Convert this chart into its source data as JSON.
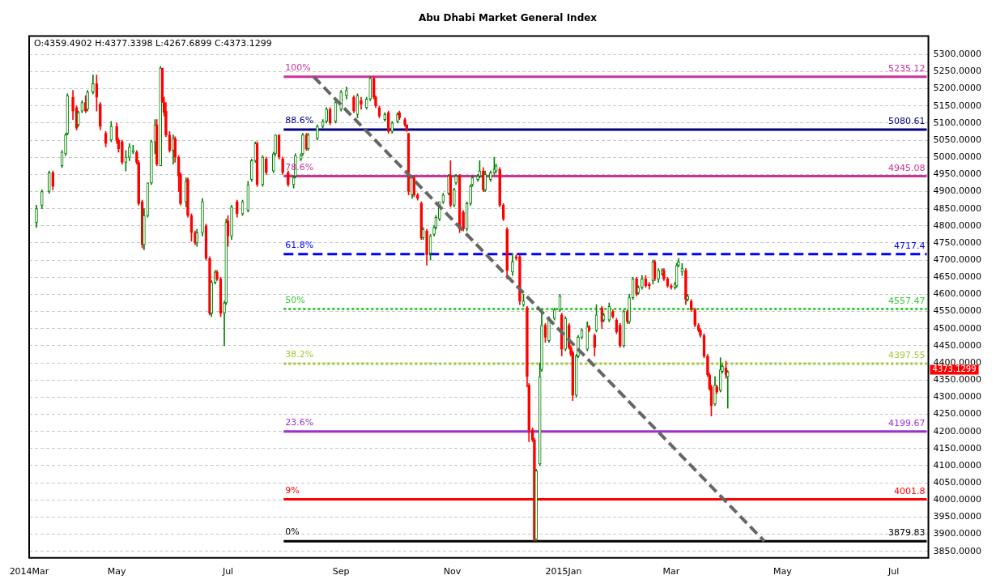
{
  "chart_data": {
    "type": "candlestick",
    "title": "Abu Dhabi Market General Index",
    "grid": "y",
    "xlim": [
      "2014-03-14",
      "2015-07-20"
    ],
    "xticks": [
      {
        "value": "2014-03-14",
        "label": "2014Mar"
      },
      {
        "value": "2014-05-01",
        "label": "May"
      },
      {
        "value": "2014-07-01",
        "label": "Jul"
      },
      {
        "value": "2014-09-01",
        "label": "Sep"
      },
      {
        "value": "2014-11-01",
        "label": "Nov"
      },
      {
        "value": "2015-01-01",
        "label": "2015Jan"
      },
      {
        "value": "2015-03-01",
        "label": "Mar"
      },
      {
        "value": "2015-05-01",
        "label": "May"
      },
      {
        "value": "2015-07-01",
        "label": "Jul"
      }
    ],
    "ylim": [
      3831,
      5354
    ],
    "yticks": [
      {
        "value": 3850,
        "label": "3850.0000"
      },
      {
        "value": 3900,
        "label": "3900.0000"
      },
      {
        "value": 3950,
        "label": "3950.0000"
      },
      {
        "value": 4000,
        "label": "4000.0000"
      },
      {
        "value": 4050,
        "label": "4050.0000"
      },
      {
        "value": 4100,
        "label": "4100.0000"
      },
      {
        "value": 4150,
        "label": "4150.0000"
      },
      {
        "value": 4200,
        "label": "4200.0000"
      },
      {
        "value": 4250,
        "label": "4250.0000"
      },
      {
        "value": 4300,
        "label": "4300.0000"
      },
      {
        "value": 4350,
        "label": "4350.0000"
      },
      {
        "value": 4400,
        "label": "4400.0000"
      },
      {
        "value": 4450,
        "label": "4450.0000"
      },
      {
        "value": 4500,
        "label": "4500.0000"
      },
      {
        "value": 4550,
        "label": "4550.0000"
      },
      {
        "value": 4600,
        "label": "4600.0000"
      },
      {
        "value": 4650,
        "label": "4650.0000"
      },
      {
        "value": 4700,
        "label": "4700.0000"
      },
      {
        "value": 4750,
        "label": "4750.0000"
      },
      {
        "value": 4800,
        "label": "4800.0000"
      },
      {
        "value": 4850,
        "label": "4850.0000"
      },
      {
        "value": 4900,
        "label": "4900.0000"
      },
      {
        "value": 4950,
        "label": "4950.0000"
      },
      {
        "value": 5000,
        "label": "5000.0000"
      },
      {
        "value": 5050,
        "label": "5050.0000"
      },
      {
        "value": 5100,
        "label": "5100.0000"
      },
      {
        "value": 5150,
        "label": "5150.0000"
      },
      {
        "value": 5200,
        "label": "5200.0000"
      },
      {
        "value": 5250,
        "label": "5250.0000"
      },
      {
        "value": 5300,
        "label": "5300.0000"
      }
    ],
    "ref_lines": [
      {
        "axis": "y",
        "value": 5235.12,
        "label": "5235.12",
        "color": "#cc3399",
        "line_style": "solid"
      },
      {
        "axis": "y",
        "value": 5080.61,
        "label": "5080.61",
        "color": "#000080",
        "line_style": "solid"
      },
      {
        "axis": "y",
        "value": 4945.08,
        "label": "4945.08",
        "color": "#cc3399",
        "line_style": "solid"
      },
      {
        "axis": "y",
        "value": 4717.4,
        "label": "4717.4",
        "color": "#0000ff",
        "line_style": "dashed"
      },
      {
        "axis": "y",
        "value": 4557.47,
        "label": "4557.47",
        "color": "#33cc33",
        "line_style": "dotted"
      },
      {
        "axis": "y",
        "value": 4397.55,
        "label": "4397.55",
        "color": "#99cc33",
        "line_style": "dotted"
      },
      {
        "axis": "y",
        "value": 4199.67,
        "label": "4199.67",
        "color": "#9933cc",
        "line_style": "solid"
      },
      {
        "axis": "y",
        "value": 4001.8,
        "label": "4001.8",
        "color": "#ff0000",
        "line_style": "solid"
      },
      {
        "axis": "y",
        "value": 3879.83,
        "label": "3879.83",
        "color": "#000000",
        "line_style": "solid"
      }
    ],
    "annotations": [
      "O:4359.4902 H:4377.3398 L:4267.6899 C:4373.1299",
      "4373.1299",
      {
        "text": "100%",
        "y": 5235.12
      },
      {
        "text": "88.6%",
        "y": 5080.61
      },
      {
        "text": "78.6%",
        "y": 4945.08
      },
      {
        "text": "61.8%",
        "y": 4717.4
      },
      {
        "text": "50%",
        "y": 4557.47
      },
      {
        "text": "38.2%",
        "y": 4397.55
      },
      {
        "text": "23.6%",
        "y": 4199.67
      },
      {
        "text": "9%",
        "y": 4001.8
      },
      {
        "text": "0%",
        "y": 3879.83
      }
    ],
    "series": [
      {
        "x": [
          "2014-03-18",
          "2014-03-21",
          "2014-03-25",
          "2014-03-27",
          "2014-04-01",
          "2014-04-03",
          "2014-04-04",
          "2014-04-07",
          "2014-04-09",
          "2014-04-10",
          "2014-04-12",
          "2014-04-14",
          "2014-04-15",
          "2014-04-18",
          "2014-04-20",
          "2014-04-22",
          "2014-04-25",
          "2014-04-28",
          "2014-05-01",
          "2014-05-02",
          "2014-05-04",
          "2014-05-06",
          "2014-05-08",
          "2014-05-10",
          "2014-05-12",
          "2014-05-13",
          "2014-05-15",
          "2014-05-16",
          "2014-05-18",
          "2014-05-20",
          "2014-05-22",
          "2014-05-23",
          "2014-05-25",
          "2014-05-26",
          "2014-05-27",
          "2014-05-28",
          "2014-05-30",
          "2014-06-01",
          "2014-06-02",
          "2014-06-04",
          "2014-06-05",
          "2014-06-08",
          "2014-06-09",
          "2014-06-11",
          "2014-06-13",
          "2014-06-14",
          "2014-06-17",
          "2014-06-19",
          "2014-06-21",
          "2014-06-22",
          "2014-06-24",
          "2014-06-25",
          "2014-06-27",
          "2014-06-29",
          "2014-06-30",
          "2014-07-01",
          "2014-07-03",
          "2014-07-06",
          "2014-07-09",
          "2014-07-12",
          "2014-07-14",
          "2014-07-16",
          "2014-07-17",
          "2014-07-20",
          "2014-07-22",
          "2014-07-26",
          "2014-07-27",
          "2014-07-29",
          "2014-07-31",
          "2014-08-03",
          "2014-08-06",
          "2014-08-07",
          "2014-08-10",
          "2014-08-11",
          "2014-08-13",
          "2014-08-14",
          "2014-08-19",
          "2014-08-22",
          "2014-08-24",
          "2014-08-26",
          "2014-08-29",
          "2014-09-01",
          "2014-09-04",
          "2014-09-08",
          "2014-09-10",
          "2014-09-12",
          "2014-09-15",
          "2014-09-17",
          "2014-09-19",
          "2014-09-20",
          "2014-09-22",
          "2014-09-25",
          "2014-09-27",
          "2014-09-29",
          "2014-10-02",
          "2014-10-03",
          "2014-10-06",
          "2014-10-07",
          "2014-10-08",
          "2014-10-10",
          "2014-10-11",
          "2014-10-13",
          "2014-10-15",
          "2014-10-16",
          "2014-10-18",
          "2014-10-20",
          "2014-10-22",
          "2014-10-23",
          "2014-10-25",
          "2014-10-27",
          "2014-10-30",
          "2014-10-31",
          "2014-11-02",
          "2014-11-03",
          "2014-11-05",
          "2014-11-07",
          "2014-11-09",
          "2014-11-11",
          "2014-11-12",
          "2014-11-15",
          "2014-11-16",
          "2014-11-18",
          "2014-11-19",
          "2014-11-22",
          "2014-11-24",
          "2014-11-25",
          "2014-11-27",
          "2014-11-29",
          "2014-12-01",
          "2014-12-04",
          "2014-12-06",
          "2014-12-08",
          "2014-12-10",
          "2014-12-12",
          "2014-12-13",
          "2014-12-15",
          "2014-12-16",
          "2014-12-17",
          "2014-12-19",
          "2014-12-20",
          "2014-12-22",
          "2014-12-24",
          "2014-12-27",
          "2014-12-30",
          "2014-12-31",
          "2015-01-02",
          "2015-01-04",
          "2015-01-05",
          "2015-01-06",
          "2015-01-08",
          "2015-01-09",
          "2015-01-11",
          "2015-01-14",
          "2015-01-15",
          "2015-01-18",
          "2015-01-19",
          "2015-01-22",
          "2015-01-23",
          "2015-01-26",
          "2015-01-28",
          "2015-01-30",
          "2015-02-01",
          "2015-02-03",
          "2015-02-05",
          "2015-02-06",
          "2015-02-08",
          "2015-02-10",
          "2015-02-11",
          "2015-02-13",
          "2015-02-15",
          "2015-02-17",
          "2015-02-19",
          "2015-02-20",
          "2015-02-22",
          "2015-02-24",
          "2015-02-25",
          "2015-02-27",
          "2015-03-01",
          "2015-03-03",
          "2015-03-04",
          "2015-03-05",
          "2015-03-07",
          "2015-03-09",
          "2015-03-10",
          "2015-03-12",
          "2015-03-14",
          "2015-03-16",
          "2015-03-17",
          "2015-03-19",
          "2015-03-21",
          "2015-03-22",
          "2015-03-23",
          "2015-03-25",
          "2015-03-26",
          "2015-03-28",
          "2015-03-29",
          "2015-03-31",
          "2015-04-01"
        ],
        "ohlc": [
          [
            4810,
            4860,
            4795,
            4850
          ],
          [
            4860,
            4905,
            4850,
            4900
          ],
          [
            4900,
            4960,
            4895,
            4955
          ],
          [
            4955,
            4960,
            4905,
            4915
          ],
          [
            4975,
            5020,
            4970,
            5015
          ],
          [
            5010,
            5070,
            5005,
            5065
          ],
          [
            5070,
            5185,
            5065,
            5180
          ],
          [
            5175,
            5195,
            5110,
            5135
          ],
          [
            5145,
            5150,
            5080,
            5085
          ],
          [
            5095,
            5135,
            5090,
            5130
          ],
          [
            5135,
            5165,
            5130,
            5160
          ],
          [
            5160,
            5180,
            5130,
            5135
          ],
          [
            5140,
            5195,
            5135,
            5190
          ],
          [
            5190,
            5240,
            5185,
            5215
          ],
          [
            5215,
            5240,
            5135,
            5175
          ],
          [
            5155,
            5160,
            5080,
            5090
          ],
          [
            5070,
            5075,
            5030,
            5040
          ],
          [
            5050,
            5105,
            5045,
            5090
          ],
          [
            5090,
            5100,
            5040,
            5050
          ],
          [
            5050,
            5055,
            5015,
            5025
          ],
          [
            5045,
            5050,
            4980,
            4985
          ],
          [
            4985,
            5020,
            4960,
            5000
          ],
          [
            5000,
            5040,
            4990,
            5030
          ],
          [
            5015,
            5035,
            5010,
            5020
          ],
          [
            5015,
            5020,
            4980,
            4985
          ],
          [
            4985,
            4990,
            4860,
            4865
          ],
          [
            4870,
            4875,
            4735,
            4745
          ],
          [
            4745,
            4850,
            4730,
            4830
          ],
          [
            4830,
            4925,
            4825,
            4925
          ],
          [
            4925,
            5050,
            4920,
            5045
          ],
          [
            5045,
            5110,
            5010,
            5095
          ],
          [
            5095,
            5110,
            4975,
            4980
          ],
          [
            4975,
            5265,
            4975,
            5260
          ],
          [
            5260,
            5260,
            5160,
            5160
          ],
          [
            5160,
            5175,
            5120,
            5130
          ],
          [
            5135,
            5160,
            5060,
            5065
          ],
          [
            5065,
            5075,
            5015,
            5020
          ],
          [
            5020,
            5065,
            4980,
            5055
          ],
          [
            5055,
            5060,
            4985,
            5000
          ],
          [
            5000,
            5005,
            4900,
            4945
          ],
          [
            4950,
            4955,
            4860,
            4865
          ],
          [
            4870,
            4940,
            4855,
            4930
          ],
          [
            4935,
            4940,
            4825,
            4830
          ],
          [
            4830,
            4835,
            4755,
            4780
          ],
          [
            4780,
            4785,
            4745,
            4750
          ],
          [
            4750,
            4790,
            4740,
            4780
          ],
          [
            4780,
            4880,
            4770,
            4870
          ],
          [
            4800,
            4805,
            4700,
            4705
          ],
          [
            4705,
            4710,
            4540,
            4545
          ],
          [
            4545,
            4640,
            4535,
            4635
          ],
          [
            4635,
            4670,
            4630,
            4665
          ],
          [
            4665,
            4670,
            4640,
            4645
          ],
          [
            4645,
            4650,
            4535,
            4545
          ],
          [
            4545,
            4580,
            4450,
            4575
          ],
          [
            4575,
            4820,
            4570,
            4810
          ],
          [
            4815,
            4830,
            4740,
            4770
          ],
          [
            4770,
            4860,
            4760,
            4855
          ],
          [
            4870,
            4875,
            4825,
            4835
          ],
          [
            4835,
            4875,
            4830,
            4870
          ],
          [
            4845,
            4930,
            4840,
            4920
          ],
          [
            4935,
            4995,
            4930,
            4990
          ],
          [
            4990,
            5045,
            4985,
            5040
          ],
          [
            5040,
            5045,
            4915,
            4920
          ],
          [
            4920,
            5005,
            4915,
            5000
          ],
          [
            4995,
            5000,
            4950,
            4955
          ],
          [
            4960,
            5015,
            4955,
            5010
          ],
          [
            5010,
            5065,
            5005,
            5065
          ],
          [
            5065,
            5065,
            4995,
            5000
          ],
          [
            4995,
            5000,
            4950,
            4955
          ],
          [
            4955,
            4960,
            4915,
            4920
          ],
          [
            4920,
            4945,
            4910,
            4940
          ],
          [
            4945,
            5010,
            4940,
            5005
          ],
          [
            4995,
            5010,
            4990,
            5005
          ],
          [
            5010,
            5070,
            5005,
            5065
          ],
          [
            5065,
            5070,
            5020,
            5025
          ],
          [
            5025,
            5070,
            5020,
            5065
          ],
          [
            5055,
            5095,
            5050,
            5090
          ],
          [
            5090,
            5110,
            5085,
            5105
          ],
          [
            5105,
            5145,
            5100,
            5140
          ],
          [
            5140,
            5145,
            5095,
            5100
          ],
          [
            5105,
            5170,
            5100,
            5160
          ],
          [
            5140,
            5195,
            5135,
            5190
          ],
          [
            5180,
            5205,
            5170,
            5195
          ],
          [
            5175,
            5180,
            5130,
            5135
          ],
          [
            5125,
            5185,
            5115,
            5180
          ],
          [
            5165,
            5175,
            5140,
            5155
          ],
          [
            5145,
            5175,
            5140,
            5170
          ],
          [
            5170,
            5235,
            5165,
            5230
          ],
          [
            5230,
            5235,
            5170,
            5175
          ],
          [
            5175,
            5180,
            5145,
            5150
          ],
          [
            5145,
            5150,
            5115,
            5120
          ],
          [
            5110,
            5130,
            5105,
            5125
          ],
          [
            5130,
            5135,
            5070,
            5075
          ],
          [
            5075,
            5105,
            5070,
            5100
          ],
          [
            5105,
            5130,
            5100,
            5125
          ],
          [
            5130,
            5135,
            5110,
            5115
          ],
          [
            5110,
            5115,
            5090,
            5095
          ],
          [
            5095,
            5095,
            5075,
            5080
          ],
          [
            5070,
            5070,
            4890,
            4900
          ],
          [
            4890,
            4945,
            4880,
            4940
          ],
          [
            4940,
            4945,
            4885,
            4890
          ],
          [
            4890,
            4895,
            4875,
            4880
          ],
          [
            4865,
            4870,
            4760,
            4765
          ],
          [
            4765,
            4795,
            4760,
            4790
          ],
          [
            4785,
            4790,
            4685,
            4715
          ],
          [
            4720,
            4775,
            4700,
            4770
          ],
          [
            4775,
            4800,
            4770,
            4795
          ],
          [
            4795,
            4830,
            4790,
            4825
          ],
          [
            4820,
            4870,
            4815,
            4870
          ],
          [
            4870,
            4895,
            4865,
            4890
          ],
          [
            4895,
            4950,
            4890,
            4945
          ],
          [
            4945,
            4990,
            4855,
            4860
          ],
          [
            4860,
            4910,
            4855,
            4905
          ],
          [
            4925,
            4950,
            4920,
            4945
          ],
          [
            4945,
            4950,
            4780,
            4790
          ],
          [
            4840,
            4845,
            4785,
            4790
          ],
          [
            4790,
            4870,
            4785,
            4865
          ],
          [
            4865,
            4920,
            4860,
            4915
          ],
          [
            4920,
            4945,
            4915,
            4940
          ],
          [
            4935,
            4950,
            4930,
            4945
          ],
          [
            4945,
            4990,
            4940,
            4960
          ],
          [
            4960,
            4970,
            4900,
            4905
          ],
          [
            4905,
            4960,
            4900,
            4950
          ],
          [
            4935,
            4960,
            4930,
            4955
          ],
          [
            4955,
            5000,
            4950,
            4965
          ],
          [
            4960,
            4980,
            4955,
            4975
          ],
          [
            4965,
            4970,
            4855,
            4860
          ],
          [
            4860,
            4865,
            4815,
            4820
          ],
          [
            4790,
            4795,
            4645,
            4670
          ],
          [
            4665,
            4720,
            4655,
            4695
          ],
          [
            4710,
            4715,
            4700,
            4705
          ],
          [
            4710,
            4715,
            4570,
            4580
          ],
          [
            4570,
            4600,
            4565,
            4580
          ],
          [
            4560,
            4565,
            4330,
            4360
          ],
          [
            4335,
            4340,
            4170,
            4205
          ],
          [
            4205,
            4210,
            4170,
            4175
          ],
          [
            4175,
            4180,
            3880,
            3885
          ],
          [
            3885,
            4090,
            3880,
            4085
          ],
          [
            4105,
            4400,
            4100,
            4360
          ],
          [
            4380,
            4555,
            4375,
            4510
          ],
          [
            4510,
            4515,
            4460,
            4475
          ],
          [
            4465,
            4535,
            4460,
            4530
          ],
          [
            4530,
            4560,
            4525,
            4555
          ],
          [
            4555,
            4600,
            4550,
            4595
          ],
          [
            4540,
            4545,
            4420,
            4440
          ],
          [
            4440,
            4535,
            4435,
            4530
          ],
          [
            4510,
            4515,
            4440,
            4445
          ],
          [
            4445,
            4450,
            4420,
            4425
          ],
          [
            4430,
            4435,
            4290,
            4305
          ],
          [
            4305,
            4425,
            4300,
            4420
          ],
          [
            4420,
            4480,
            4415,
            4475
          ],
          [
            4475,
            4500,
            4470,
            4495
          ],
          [
            4440,
            4520,
            4435,
            4505
          ],
          [
            4505,
            4510,
            4490,
            4495
          ],
          [
            4480,
            4485,
            4420,
            4445
          ],
          [
            4495,
            4570,
            4490,
            4540
          ],
          [
            4560,
            4565,
            4500,
            4520
          ],
          [
            4525,
            4545,
            4520,
            4540
          ],
          [
            4525,
            4575,
            4520,
            4565
          ],
          [
            4550,
            4555,
            4530,
            4535
          ],
          [
            4525,
            4530,
            4485,
            4490
          ],
          [
            4510,
            4515,
            4445,
            4450
          ],
          [
            4450,
            4555,
            4445,
            4550
          ],
          [
            4550,
            4555,
            4515,
            4520
          ],
          [
            4520,
            4600,
            4515,
            4590
          ],
          [
            4590,
            4650,
            4585,
            4645
          ],
          [
            4645,
            4650,
            4595,
            4600
          ],
          [
            4605,
            4625,
            4600,
            4620
          ],
          [
            4620,
            4655,
            4615,
            4645
          ],
          [
            4645,
            4655,
            4620,
            4625
          ],
          [
            4630,
            4635,
            4615,
            4625
          ],
          [
            4640,
            4700,
            4630,
            4695
          ],
          [
            4695,
            4700,
            4640,
            4645
          ],
          [
            4645,
            4675,
            4635,
            4670
          ],
          [
            4660,
            4675,
            4655,
            4670
          ],
          [
            4670,
            4675,
            4640,
            4645
          ],
          [
            4645,
            4650,
            4620,
            4625
          ],
          [
            4625,
            4630,
            4615,
            4620
          ],
          [
            4620,
            4635,
            4615,
            4630
          ],
          [
            4625,
            4690,
            4620,
            4685
          ],
          [
            4685,
            4705,
            4680,
            4695
          ],
          [
            4665,
            4690,
            4655,
            4675
          ],
          [
            4670,
            4675,
            4570,
            4585
          ],
          [
            4585,
            4600,
            4580,
            4595
          ],
          [
            4580,
            4585,
            4550,
            4555
          ],
          [
            4555,
            4560,
            4505,
            4510
          ],
          [
            4510,
            4515,
            4490,
            4495
          ],
          [
            4495,
            4500,
            4475,
            4480
          ],
          [
            4480,
            4485,
            4415,
            4420
          ],
          [
            4420,
            4425,
            4360,
            4365
          ],
          [
            4365,
            4370,
            4320,
            4325
          ],
          [
            4330,
            4335,
            4245,
            4275
          ],
          [
            4280,
            4360,
            4275,
            4335
          ],
          [
            4330,
            4335,
            4310,
            4315
          ],
          [
            4320,
            4415,
            4315,
            4380
          ],
          [
            4375,
            4395,
            4370,
            4390
          ],
          [
            4385,
            4405,
            4355,
            4365
          ],
          [
            4359.4902,
            4377.3398,
            4267.6899,
            4373.1299
          ]
        ],
        "colors": [
          "#008000",
          "#008000",
          "#008000",
          "#ff0000",
          "#008000",
          "#008000",
          "#008000",
          "#ff0000",
          "#ff0000",
          "#008000",
          "#008000",
          "#ff0000",
          "#008000",
          "#008000",
          "#ff0000",
          "#ff0000",
          "#ff0000",
          "#008000",
          "#ff0000",
          "#ff0000",
          "#ff0000",
          "#008000",
          "#008000",
          "#008000",
          "#ff0000",
          "#ff0000",
          "#ff0000",
          "#008000",
          "#008000",
          "#008000",
          "#008000",
          "#ff0000",
          "#008000",
          "#ff0000",
          "#ff0000",
          "#ff0000",
          "#ff0000",
          "#008000",
          "#ff0000",
          "#ff0000",
          "#ff0000",
          "#008000",
          "#ff0000",
          "#ff0000",
          "#ff0000",
          "#008000",
          "#008000",
          "#ff0000",
          "#ff0000",
          "#008000",
          "#008000",
          "#ff0000",
          "#ff0000",
          "#008000",
          "#008000",
          "#ff0000",
          "#008000",
          "#ff0000",
          "#008000",
          "#008000",
          "#008000",
          "#008000",
          "#ff0000",
          "#008000",
          "#ff0000",
          "#008000",
          "#008000",
          "#ff0000",
          "#ff0000",
          "#ff0000",
          "#008000",
          "#008000",
          "#008000",
          "#008000",
          "#ff0000",
          "#008000",
          "#008000",
          "#008000",
          "#008000",
          "#ff0000",
          "#008000",
          "#008000",
          "#008000",
          "#ff0000",
          "#008000",
          "#ff0000",
          "#008000",
          "#008000",
          "#ff0000",
          "#ff0000",
          "#ff0000",
          "#008000",
          "#ff0000",
          "#008000",
          "#008000",
          "#ff0000",
          "#ff0000",
          "#ff0000",
          "#ff0000",
          "#008000",
          "#ff0000",
          "#ff0000",
          "#ff0000",
          "#008000",
          "#ff0000",
          "#008000",
          "#008000",
          "#008000",
          "#008000",
          "#008000",
          "#008000",
          "#ff0000",
          "#008000",
          "#008000",
          "#ff0000",
          "#ff0000",
          "#008000",
          "#008000",
          "#008000",
          "#008000",
          "#008000",
          "#ff0000",
          "#008000",
          "#008000",
          "#008000",
          "#008000",
          "#ff0000",
          "#ff0000",
          "#ff0000",
          "#008000",
          "#ff0000",
          "#ff0000",
          "#008000",
          "#ff0000",
          "#ff0000",
          "#ff0000",
          "#ff0000",
          "#008000",
          "#008000",
          "#008000",
          "#ff0000",
          "#008000",
          "#008000",
          "#008000",
          "#ff0000",
          "#008000",
          "#ff0000",
          "#ff0000",
          "#ff0000",
          "#008000",
          "#008000",
          "#008000",
          "#008000",
          "#ff0000",
          "#ff0000",
          "#008000",
          "#ff0000",
          "#008000",
          "#008000",
          "#ff0000",
          "#ff0000",
          "#ff0000",
          "#008000",
          "#ff0000",
          "#008000",
          "#008000",
          "#ff0000",
          "#008000",
          "#008000",
          "#ff0000",
          "#ff0000",
          "#008000",
          "#ff0000",
          "#008000",
          "#008000",
          "#ff0000",
          "#ff0000",
          "#ff0000",
          "#008000",
          "#008000",
          "#008000",
          "#008000",
          "#ff0000",
          "#008000",
          "#ff0000",
          "#ff0000",
          "#ff0000",
          "#ff0000",
          "#ff0000",
          "#ff0000",
          "#ff0000",
          "#ff0000",
          "#008000",
          "#ff0000",
          "#008000",
          "#008000",
          "#ff0000",
          "#008000"
        ]
      },
      {
        "type": "line",
        "x": [
          "2014-08-17",
          "2015-04-21"
        ],
        "values": [
          5235,
          3880
        ],
        "color": "#666666",
        "line_style": "dashed"
      }
    ]
  }
}
